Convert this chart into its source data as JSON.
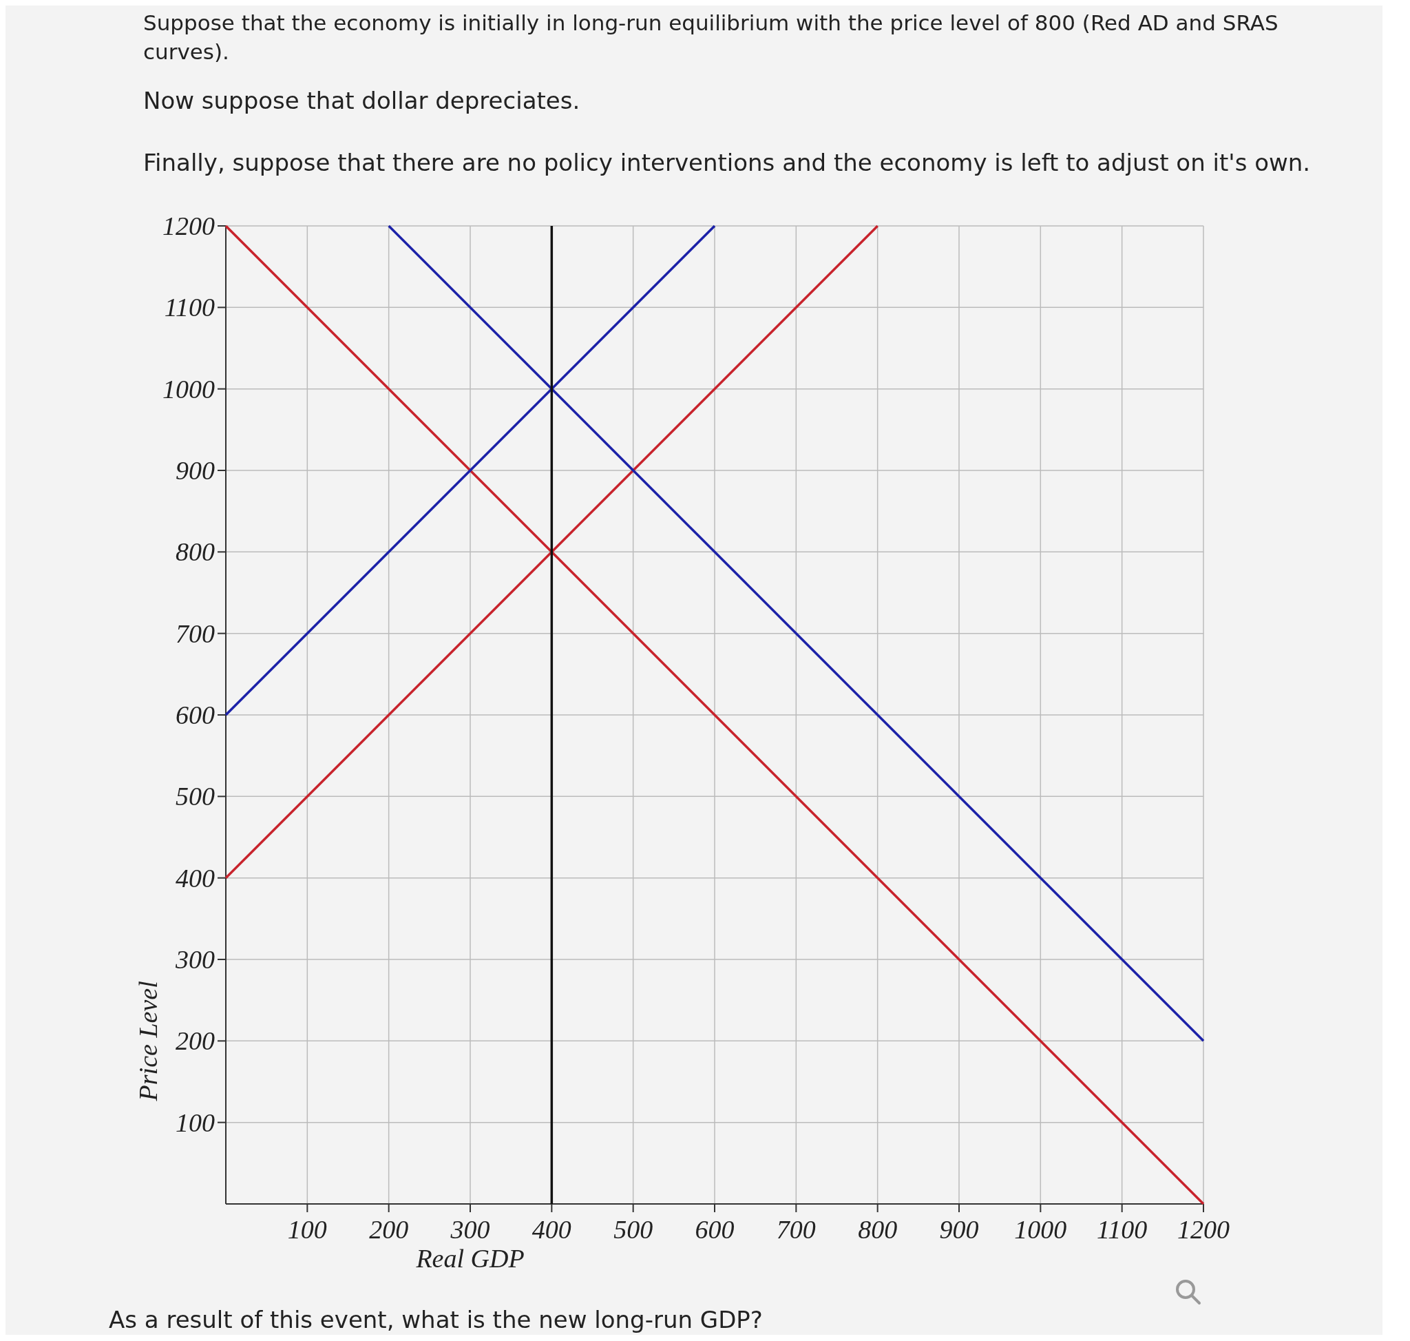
{
  "chart_data": {
    "type": "line",
    "title": "Suppose that the economy is initially in long-run equilibrium with the price level of 800 (Red AD and SRAS curves).",
    "subtitle": "Now suppose that dollar depreciates.",
    "annotations": [
      "Finally, suppose that there are no policy interventions and the economy is left to adjust on it's own.",
      "As a result of this event, what is the new long-run GDP?"
    ],
    "xlabel": "Real GDP",
    "ylabel": "Price Level",
    "xlim": [
      0,
      1200
    ],
    "ylim": [
      0,
      1200
    ],
    "xticks": [
      100,
      200,
      300,
      400,
      500,
      600,
      700,
      800,
      900,
      1000,
      1100,
      1200
    ],
    "yticks": [
      100,
      200,
      300,
      400,
      500,
      600,
      700,
      800,
      900,
      1000,
      1100,
      1200
    ],
    "grid": true,
    "marker": "none",
    "line_style": "solid",
    "series": [
      {
        "color": "#c8232c",
        "x": [
          0,
          1200
        ],
        "values": [
          1200,
          0
        ]
      },
      {
        "color": "#c8232c",
        "x": [
          0,
          800
        ],
        "values": [
          400,
          1200
        ]
      },
      {
        "color": "#1c22a8",
        "x": [
          0,
          600
        ],
        "values": [
          600,
          1200
        ]
      },
      {
        "color": "#1c22a8",
        "x": [
          200,
          1200
        ],
        "values": [
          1200,
          200
        ]
      },
      {
        "color": "#111111",
        "x": [
          400,
          400
        ],
        "values": [
          0,
          1200
        ]
      }
    ]
  }
}
